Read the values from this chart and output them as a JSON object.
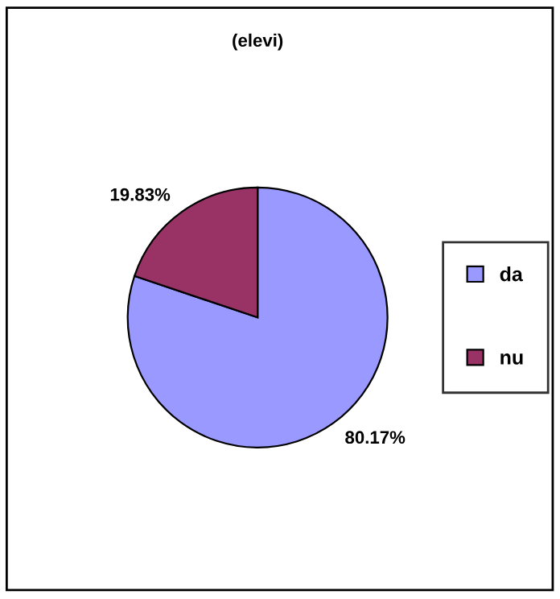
{
  "chart_data": {
    "type": "pie",
    "title": "(elevi)",
    "categories": [
      "da",
      "nu"
    ],
    "values": [
      80.17,
      19.83
    ],
    "value_labels": [
      "80.17%",
      "19.83%"
    ],
    "colors": [
      "#9999ff",
      "#993366"
    ],
    "legend": "right"
  }
}
